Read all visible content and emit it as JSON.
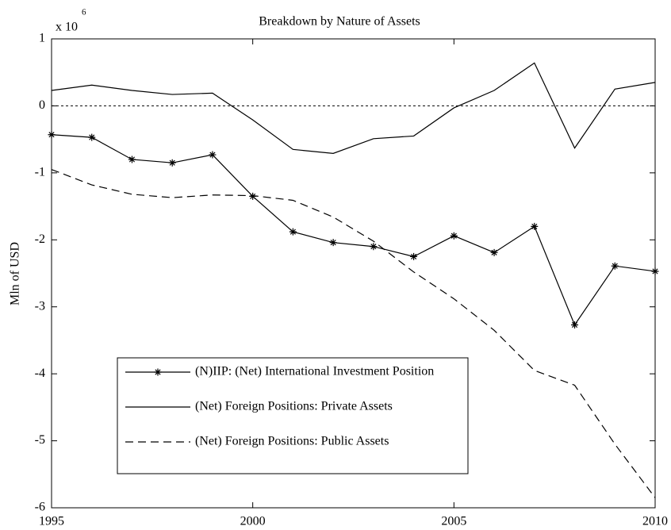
{
  "chart_data": {
    "type": "line",
    "title": "Breakdown by Nature of Assets",
    "ylabel": "Mln of USD",
    "y_multiplier": {
      "base": "x 10",
      "exponent": "6"
    },
    "x": [
      1995,
      1996,
      1997,
      1998,
      1999,
      2000,
      2001,
      2002,
      2003,
      2004,
      2005,
      2006,
      2007,
      2008,
      2009,
      2010
    ],
    "series": [
      {
        "name": "(N)IIP: (Net) International Investment Position",
        "color": "#000000",
        "style": "solid",
        "marker": "*",
        "values": [
          -0.43,
          -0.47,
          -0.8,
          -0.85,
          -0.73,
          -1.35,
          -1.88,
          -2.04,
          -2.1,
          -2.25,
          -1.94,
          -2.19,
          -1.8,
          -3.27,
          -2.39,
          -2.47
        ]
      },
      {
        "name": "(Net) Foreign Positions: Private Assets",
        "color": "#000000",
        "style": "solid",
        "values": [
          0.23,
          0.31,
          0.23,
          0.17,
          0.19,
          -0.21,
          -0.65,
          -0.71,
          -0.49,
          -0.45,
          -0.03,
          0.23,
          0.64,
          -0.63,
          0.25,
          0.35
        ]
      },
      {
        "name": "(Net) Foreign Positions: Public Assets",
        "color": "#000000",
        "style": "dashed",
        "values": [
          -0.95,
          -1.18,
          -1.32,
          -1.37,
          -1.33,
          -1.34,
          -1.41,
          -1.66,
          -2.02,
          -2.48,
          -2.88,
          -3.35,
          -3.95,
          -4.17,
          -5.05,
          -5.85
        ]
      }
    ],
    "hline": {
      "value": 0,
      "style": "dotted"
    },
    "xlim": [
      1995,
      2010
    ],
    "xticks": [
      1995,
      2000,
      2005,
      2010
    ],
    "ylim": [
      -6,
      1
    ],
    "yticks": [
      -6,
      -5,
      -4,
      -3,
      -2,
      -1,
      0,
      1
    ],
    "grid": false,
    "legend": "lower left"
  }
}
